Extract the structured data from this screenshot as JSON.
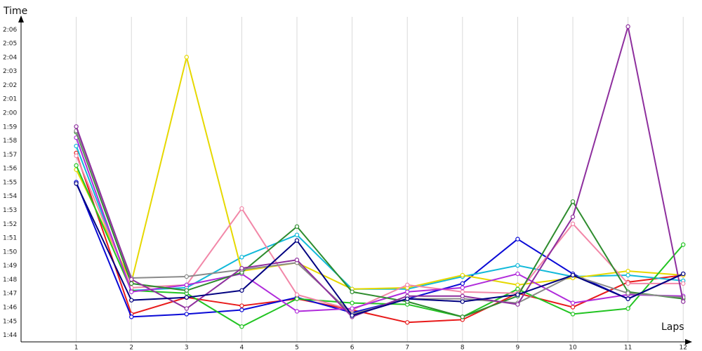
{
  "chart_data": {
    "type": "line",
    "title": "",
    "xlabel": "Laps",
    "ylabel": "Time",
    "grid": true,
    "legend": "none",
    "x": [
      1,
      2,
      3,
      4,
      5,
      6,
      7,
      8,
      9,
      10,
      11,
      12
    ],
    "x_tick_labels": [
      "1",
      "2",
      "3",
      "4",
      "5",
      "6",
      "7",
      "8",
      "9",
      "10",
      "11",
      "12"
    ],
    "ylim_seconds": [
      103.5,
      126.9
    ],
    "y_tick_labels": [
      "1:44",
      "1:45",
      "1:46",
      "1:47",
      "1:48",
      "1:49",
      "1:50",
      "1:51",
      "1:52",
      "1:53",
      "1:54",
      "1:55",
      "1:56",
      "1:57",
      "1:58",
      "1:59",
      "2:00",
      "2:01",
      "2:02",
      "2:03",
      "2:04",
      "2:05",
      "2:06"
    ],
    "y_tick_values_seconds": [
      104,
      105,
      106,
      107,
      108,
      109,
      110,
      111,
      112,
      113,
      114,
      115,
      116,
      117,
      118,
      119,
      120,
      121,
      122,
      123,
      124,
      125,
      126
    ],
    "series": [
      {
        "color": "#e81a1a",
        "values": [
          117.1,
          105.5,
          106.7,
          106.1,
          106.6,
          105.8,
          104.9,
          105.1,
          107.0,
          106.0,
          107.8,
          108.3
        ]
      },
      {
        "color": "#0a0ad6",
        "values": [
          115.0,
          105.3,
          105.5,
          105.8,
          106.7,
          105.6,
          106.6,
          107.7,
          110.9,
          108.4,
          106.6,
          108.4
        ]
      },
      {
        "color": "#11b9d9",
        "values": [
          117.6,
          107.2,
          107.4,
          109.6,
          111.2,
          107.3,
          107.3,
          108.2,
          109.0,
          108.2,
          108.3,
          107.9
        ]
      },
      {
        "color": "#e6d800",
        "values": [
          115.9,
          107.8,
          124.0,
          108.6,
          109.2,
          107.3,
          107.4,
          108.3,
          107.6,
          108.1,
          108.6,
          108.3
        ]
      },
      {
        "color": "#22c422",
        "values": [
          116.2,
          107.2,
          107.0,
          104.6,
          106.6,
          106.3,
          106.2,
          105.3,
          107.3,
          105.5,
          105.9,
          110.5
        ]
      },
      {
        "color": "#f287a8",
        "values": [
          116.9,
          107.4,
          107.6,
          113.1,
          106.9,
          105.8,
          107.6,
          107.1,
          107.0,
          112.0,
          107.7,
          107.7
        ]
      },
      {
        "color": "#b02bdb",
        "values": [
          118.2,
          107.1,
          107.6,
          108.4,
          105.7,
          105.9,
          107.1,
          107.4,
          108.4,
          106.3,
          106.9,
          106.8
        ]
      },
      {
        "color": "#2e8c2e",
        "values": [
          118.6,
          107.7,
          107.2,
          108.5,
          111.8,
          107.1,
          106.4,
          105.3,
          106.8,
          113.6,
          107.1,
          106.6
        ]
      },
      {
        "color": "#8a8a8a",
        "values": [
          118.7,
          108.1,
          108.2,
          108.7,
          109.2,
          105.5,
          106.6,
          106.6,
          106.3,
          108.3,
          107.0,
          106.7
        ]
      },
      {
        "color": "#8e2f9e",
        "values": [
          119.0,
          108.0,
          105.9,
          108.8,
          109.4,
          105.3,
          106.8,
          106.8,
          106.2,
          112.5,
          126.2,
          106.4
        ]
      },
      {
        "color": "#000080",
        "values": [
          114.9,
          106.5,
          106.7,
          107.2,
          110.8,
          105.4,
          106.6,
          106.4,
          106.9,
          108.3,
          106.6,
          108.4
        ]
      }
    ]
  }
}
